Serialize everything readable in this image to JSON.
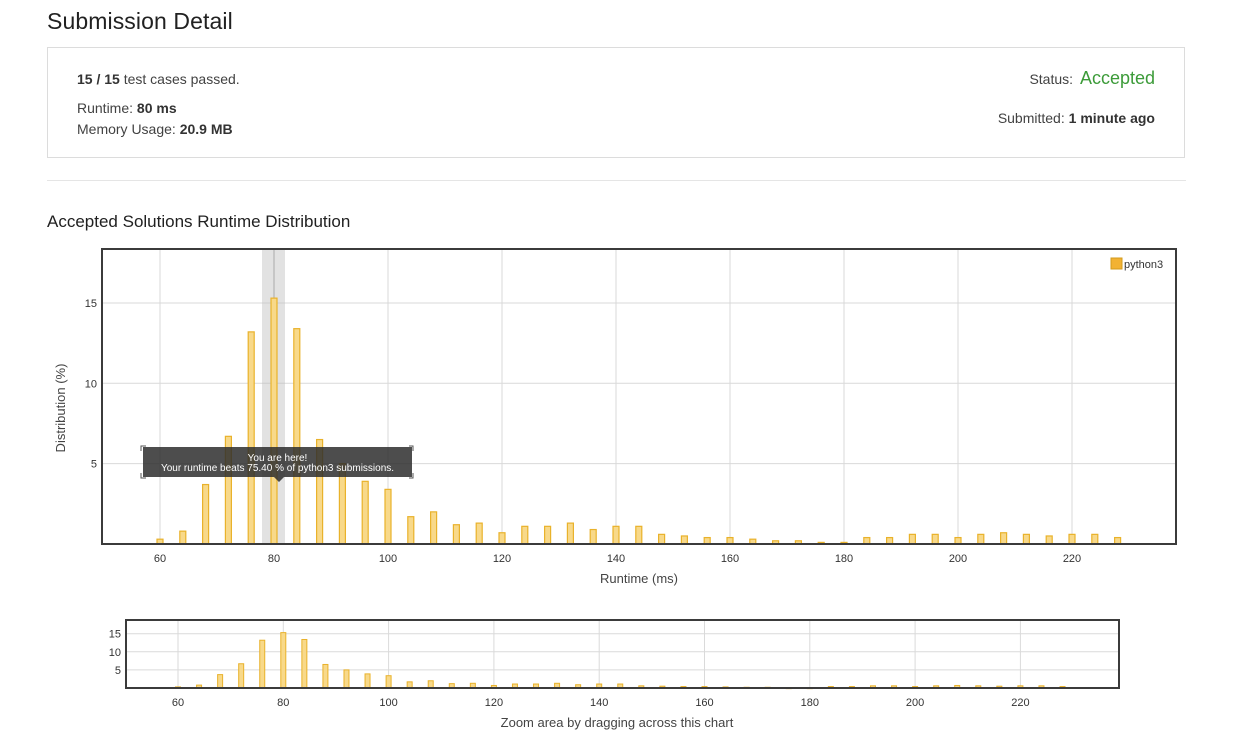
{
  "page": {
    "title": "Submission Detail"
  },
  "summary": {
    "cases_passed": "15 / 15",
    "cases_suffix": "test cases passed.",
    "runtime_label": "Runtime:",
    "runtime_value": "80 ms",
    "memory_label": "Memory Usage:",
    "memory_value": "20.9 MB",
    "status_label": "Status:",
    "status_value": "Accepted",
    "submitted_label": "Submitted:",
    "submitted_value": "1 minute ago"
  },
  "colors": {
    "accepted": "#3c9b39",
    "bar_fill": "#f8d98a",
    "bar_stroke": "#e9b22b",
    "legend": "#f2b233"
  },
  "chart_section": {
    "title": "Accepted Solutions Runtime Distribution",
    "zoom_hint": "Zoom area by dragging across this chart"
  },
  "tooltip": {
    "line1": "You are here!",
    "line2": "Your runtime beats 75.40 % of python3 submissions."
  },
  "chart_data": {
    "type": "bar",
    "xlabel": "Runtime (ms)",
    "ylabel": "Distribution (%)",
    "xlim": [
      50,
      230
    ],
    "ylim": [
      0,
      18
    ],
    "xticks": [
      60,
      80,
      100,
      120,
      140,
      160,
      180,
      200,
      220
    ],
    "yticks": [
      5,
      10,
      15
    ],
    "legend": {
      "position": "top-right"
    },
    "highlight_x": 80,
    "series": [
      {
        "name": "python3",
        "x": [
          60,
          64,
          68,
          72,
          76,
          80,
          84,
          88,
          92,
          96,
          100,
          104,
          108,
          112,
          116,
          120,
          124,
          128,
          132,
          136,
          140,
          144,
          148,
          152,
          156,
          160,
          164,
          168,
          172,
          176,
          180,
          184,
          188,
          192,
          196,
          200,
          204,
          208,
          212,
          216,
          220,
          224,
          228
        ],
        "values": [
          0.3,
          0.8,
          3.7,
          6.7,
          13.2,
          15.3,
          13.4,
          6.5,
          5.0,
          3.9,
          3.4,
          1.7,
          2.0,
          1.2,
          1.3,
          0.7,
          1.1,
          1.1,
          1.3,
          0.9,
          1.1,
          1.1,
          0.6,
          0.5,
          0.4,
          0.4,
          0.3,
          0.2,
          0.2,
          0.1,
          0.1,
          0.4,
          0.4,
          0.6,
          0.6,
          0.4,
          0.6,
          0.7,
          0.6,
          0.5,
          0.6,
          0.6,
          0.4
        ]
      }
    ],
    "overview": {
      "ylim": [
        0,
        18
      ],
      "yticks": [
        5,
        10,
        15
      ],
      "xticks": [
        60,
        80,
        100,
        120,
        140,
        160,
        180,
        200,
        220
      ]
    }
  }
}
